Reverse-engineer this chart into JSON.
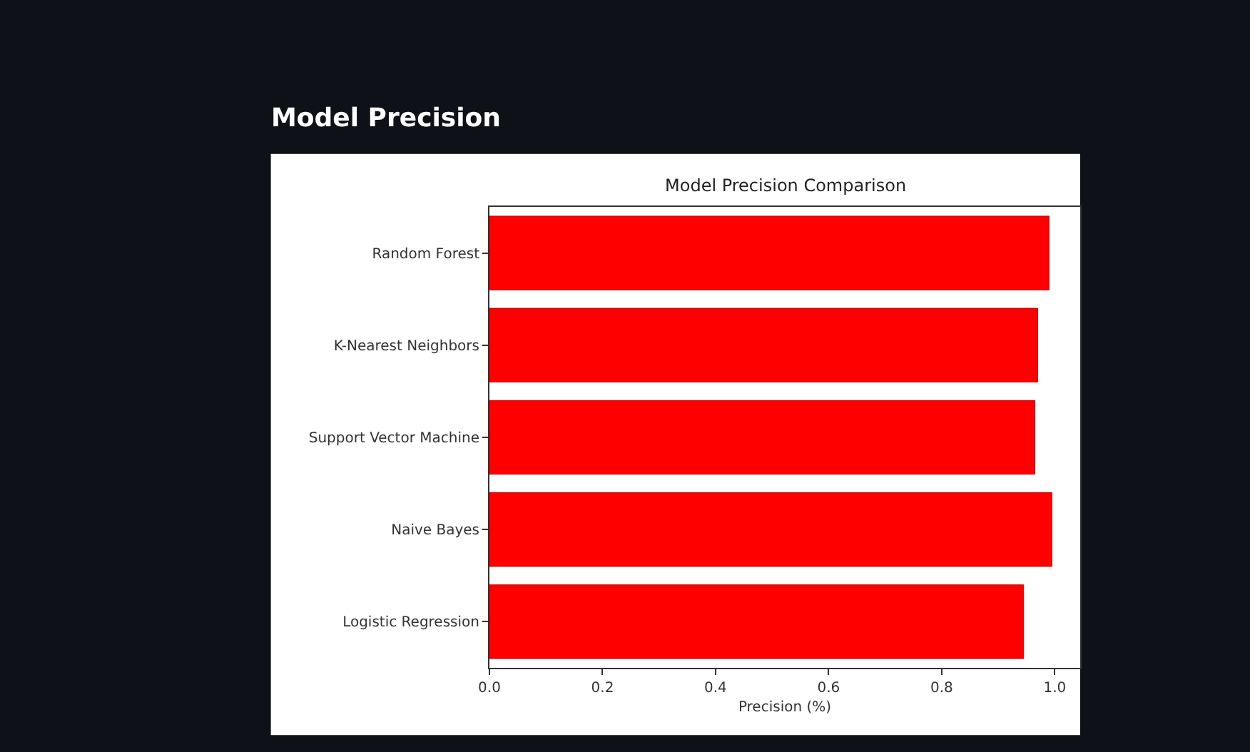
{
  "chart_data": {
    "type": "bar",
    "orientation": "horizontal",
    "title": "Model Precision",
    "subtitle": "Model Precision Comparison",
    "xlabel": "Precision (%)",
    "categories": [
      "Random Forest",
      "K-Nearest Neighbors",
      "Support Vector Machine",
      "Naive Bayes",
      "Logistic Regression"
    ],
    "values": [
      0.99,
      0.97,
      0.965,
      0.995,
      0.945
    ],
    "color": "#ff0000",
    "xlim": [
      0,
      1.045
    ],
    "xticks": [
      {
        "value": 0,
        "label": "0.0"
      },
      0.2,
      0.4,
      0.6,
      0.8,
      {
        "value": 1,
        "label": "1.0"
      }
    ]
  }
}
